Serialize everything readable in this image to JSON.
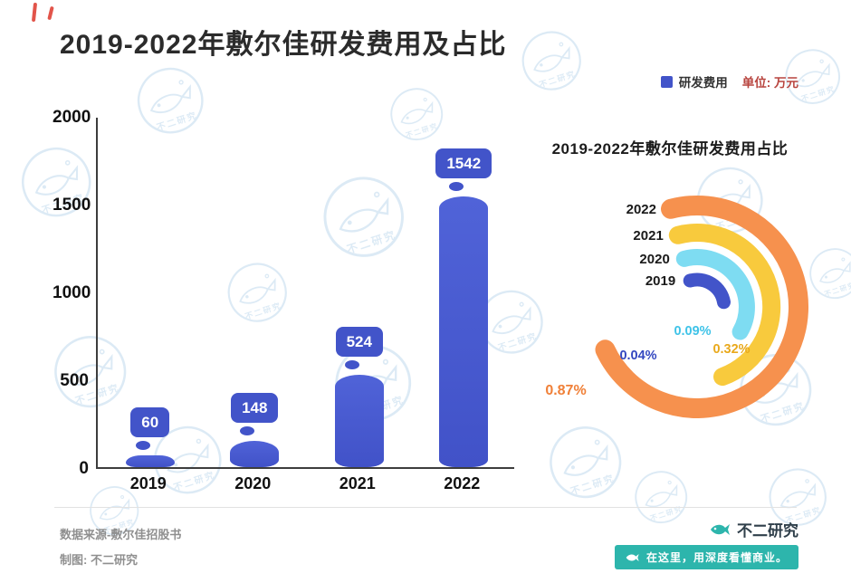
{
  "header": {
    "title": "2019-2022年敷尔佳研发费用及占比"
  },
  "legend": {
    "series": "研发费用",
    "unit": "单位: 万元"
  },
  "bar_chart": {
    "bars": [
      {
        "year": "2019",
        "value": 60
      },
      {
        "year": "2020",
        "value": 148
      },
      {
        "year": "2021",
        "value": 524
      },
      {
        "year": "2022",
        "value": 1542
      }
    ]
  },
  "radial_chart": {
    "title": "2019-2022年敷尔佳研发费用占比",
    "rings": [
      {
        "year": "2022",
        "pct": "0.87%",
        "arc_color": "#f6914e",
        "label_color": "#f08038"
      },
      {
        "year": "2021",
        "pct": "0.32%",
        "arc_color": "#f8ca3d",
        "label_color": "#e9a91c"
      },
      {
        "year": "2020",
        "pct": "0.09%",
        "arc_color": "#7edcf2",
        "label_color": "#3fc3e8"
      },
      {
        "year": "2019",
        "pct": "0.04%",
        "arc_color": "#4254c9",
        "label_color": "#3347c0"
      }
    ]
  },
  "footer": {
    "source": "数据来源-敷尔佳招股书",
    "credit": "制图: 不二研究",
    "brand": "不二研究",
    "slogan": "在这里，用深度看懂商业。"
  },
  "watermark_text": "不二研究",
  "colors": {
    "bar_blue": "#4254c9",
    "teal": "#2db5ac",
    "unit_red": "#b8453f"
  },
  "chart_data": [
    {
      "type": "bar",
      "title": "2019-2022年敷尔佳研发费用及占比",
      "series_name": "研发费用",
      "unit": "万元",
      "categories": [
        "2019",
        "2020",
        "2021",
        "2022"
      ],
      "values": [
        60,
        148,
        524,
        1542
      ],
      "ylim": [
        0,
        2000
      ],
      "yticks": [
        0,
        500,
        1000,
        1500,
        2000
      ],
      "grid": false,
      "legend_position": "top-right",
      "bar_color": "#4254c9"
    },
    {
      "type": "radial-bar",
      "title": "2019-2022年敷尔佳研发费用占比",
      "categories": [
        "2022",
        "2021",
        "2020",
        "2019"
      ],
      "values": [
        0.87,
        0.32,
        0.09,
        0.04
      ],
      "unit": "%",
      "colors": [
        "#f6914e",
        "#f8ca3d",
        "#7edcf2",
        "#4254c9"
      ],
      "legend_position": "left-of-rings"
    }
  ]
}
